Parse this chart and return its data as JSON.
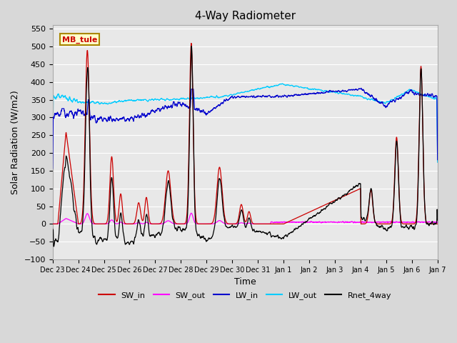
{
  "title": "4-Way Radiometer",
  "xlabel": "Time",
  "ylabel": "Solar Radiation (W/m2)",
  "ylim": [
    -100,
    560
  ],
  "yticks": [
    -100,
    -50,
    0,
    50,
    100,
    150,
    200,
    250,
    300,
    350,
    400,
    450,
    500,
    550
  ],
  "fig_facecolor": "#d8d8d8",
  "plot_facecolor": "#e8e8e8",
  "label_box_text": "MB_tule",
  "label_box_facecolor": "#ffffcc",
  "label_box_edgecolor": "#aa8800",
  "label_box_textcolor": "#cc0000",
  "colors": {
    "SW_in": "#cc0000",
    "SW_out": "#ff00ff",
    "LW_in": "#0000cc",
    "LW_out": "#00ccff",
    "Rnet_4way": "#000000"
  },
  "xtick_labels": [
    "Dec 23",
    "Dec 24",
    "Dec 25",
    "Dec 26",
    "Dec 27",
    "Dec 28",
    "Dec 29",
    "Dec 30",
    "Dec 31",
    "Jan 1",
    "Jan 2",
    "Jan 3",
    "Jan 4",
    "Jan 5",
    "Jan 6",
    "Jan 7"
  ],
  "num_points": 2000
}
